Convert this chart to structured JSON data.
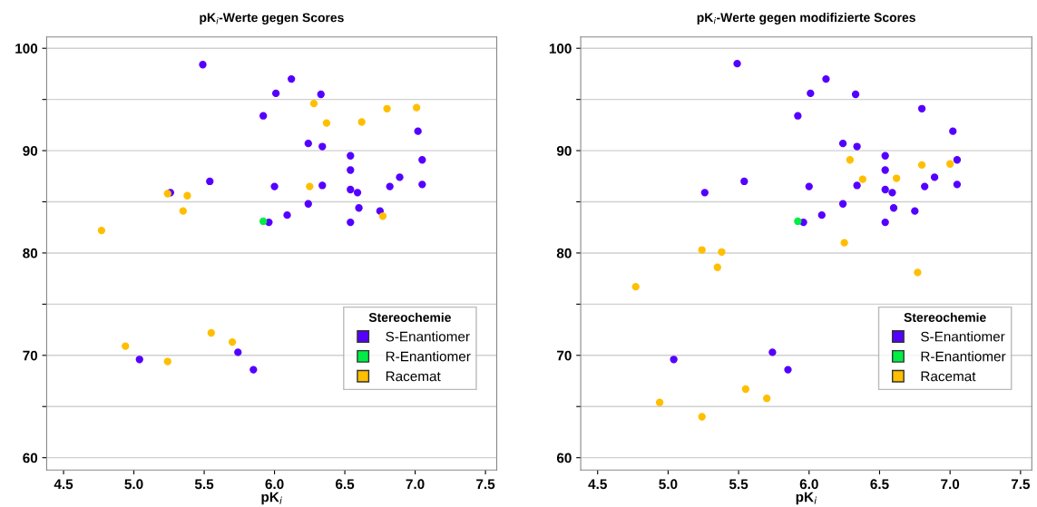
{
  "chart_data": [
    {
      "type": "scatter",
      "title": "pK$_{i}$-Werte gegen Scores",
      "xlabel": "pK$_{i}$",
      "legend_title": "Stereochemie",
      "legend": "lower right",
      "grid": "y",
      "marker": "circle",
      "xlim": [
        4.38,
        7.58
      ],
      "ylim": [
        58.8,
        101.1
      ],
      "xticks": [
        4.5,
        {
          "value": 5,
          "label": "5.0"
        },
        5.5,
        {
          "value": 6,
          "label": "6.0"
        },
        6.5,
        {
          "value": 7,
          "label": "7.0"
        },
        7.5
      ],
      "yticks": [
        60,
        {
          "value": 65,
          "label": null
        },
        70,
        {
          "value": 75,
          "label": null
        },
        80,
        {
          "value": 85,
          "label": null
        },
        90,
        {
          "value": 95,
          "label": null
        },
        100
      ],
      "series": [
        {
          "name": "S-Enantiomer",
          "color": "#5500ff",
          "x": [
            5.49,
            6.12,
            6.01,
            6.33,
            5.92,
            6.24,
            6.34,
            7.02,
            6.54,
            7.05,
            6.54,
            6.89,
            5.54,
            6.0,
            6.34,
            6.82,
            7.05,
            5.26,
            6.54,
            6.59,
            6.24,
            6.6,
            6.75,
            6.09,
            5.96,
            6.54,
            5.04,
            5.74,
            5.85
          ],
          "values": [
            98.4,
            97.0,
            95.6,
            95.5,
            93.4,
            90.7,
            90.4,
            91.9,
            89.5,
            89.1,
            88.1,
            87.4,
            87.0,
            86.5,
            86.6,
            86.5,
            86.7,
            85.9,
            86.2,
            85.9,
            84.8,
            84.4,
            84.1,
            83.7,
            83.0,
            83.0,
            69.6,
            70.3,
            68.6
          ]
        },
        {
          "name": "R-Enantiomer",
          "color": "#00ee44",
          "x": [
            5.92
          ],
          "values": [
            83.1
          ]
        },
        {
          "name": "Racemat",
          "color": "#ffbf00",
          "x": [
            6.28,
            6.37,
            6.62,
            6.8,
            7.01,
            6.25,
            5.24,
            5.38,
            5.35,
            6.77,
            4.77,
            4.94,
            5.55,
            5.7,
            5.24
          ],
          "values": [
            94.6,
            92.7,
            92.8,
            94.1,
            94.2,
            86.5,
            85.8,
            85.6,
            84.1,
            83.6,
            82.2,
            70.9,
            72.2,
            71.3,
            69.4
          ]
        }
      ]
    },
    {
      "type": "scatter",
      "title": "pK$_{i}$-Werte gegen modifizierte Scores",
      "xlabel": "pK$_{i}$",
      "legend_title": "Stereochemie",
      "legend": "lower right",
      "grid": "y",
      "marker": "circle",
      "xlim": [
        4.38,
        7.58
      ],
      "ylim": [
        58.8,
        101.1
      ],
      "xticks": [
        4.5,
        {
          "value": 5,
          "label": "5.0"
        },
        5.5,
        {
          "value": 6,
          "label": "6.0"
        },
        6.5,
        {
          "value": 7,
          "label": "7.0"
        },
        7.5
      ],
      "yticks": [
        60,
        {
          "value": 65,
          "label": null
        },
        70,
        {
          "value": 75,
          "label": null
        },
        80,
        {
          "value": 85,
          "label": null
        },
        90,
        {
          "value": 95,
          "label": null
        },
        100
      ],
      "series": [
        {
          "name": "S-Enantiomer",
          "color": "#5500ff",
          "x": [
            5.49,
            6.12,
            6.01,
            6.33,
            5.92,
            6.24,
            6.34,
            7.02,
            6.54,
            7.05,
            6.54,
            6.89,
            5.54,
            6.0,
            6.34,
            6.82,
            7.05,
            5.26,
            6.54,
            6.59,
            6.24,
            6.6,
            6.75,
            6.09,
            5.96,
            6.54,
            5.04,
            5.74,
            5.85,
            6.8
          ],
          "values": [
            98.5,
            97.0,
            95.6,
            95.5,
            93.4,
            90.7,
            90.4,
            91.9,
            89.5,
            89.1,
            88.1,
            87.4,
            87.0,
            86.5,
            86.6,
            86.5,
            86.7,
            85.9,
            86.2,
            85.9,
            84.8,
            84.4,
            84.1,
            83.7,
            83.0,
            83.0,
            69.6,
            70.3,
            68.6,
            94.1
          ]
        },
        {
          "name": "R-Enantiomer",
          "color": "#00ee44",
          "x": [
            5.92
          ],
          "values": [
            83.1
          ]
        },
        {
          "name": "Racemat",
          "color": "#ffbf00",
          "x": [
            6.29,
            6.8,
            7.0,
            6.38,
            6.62,
            6.25,
            5.24,
            5.38,
            5.35,
            6.77,
            4.77,
            4.94,
            5.55,
            5.7,
            5.24
          ],
          "values": [
            89.1,
            88.6,
            88.7,
            87.2,
            87.3,
            81.0,
            80.3,
            80.1,
            78.6,
            78.1,
            76.7,
            65.4,
            66.7,
            65.8,
            64.0
          ]
        }
      ]
    }
  ]
}
